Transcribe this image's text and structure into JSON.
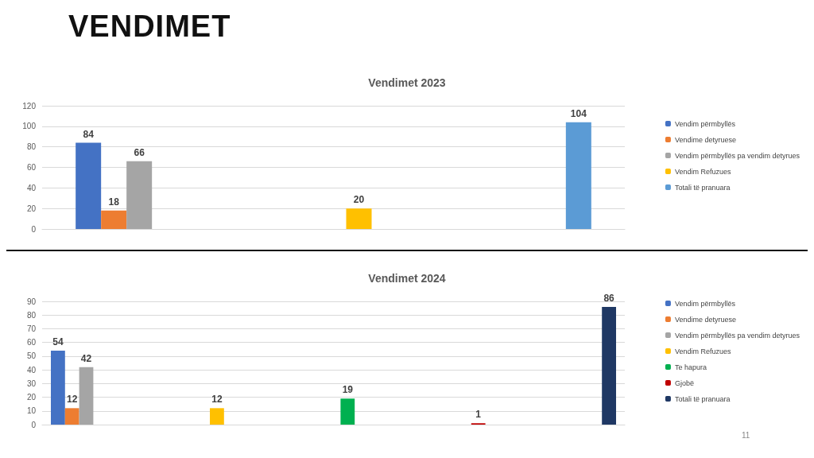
{
  "chart_data": [
    {
      "type": "bar",
      "title": "Vendimet 2023",
      "annotations": [
        "VENDIMET"
      ],
      "categories": [
        null,
        null,
        null
      ],
      "ylim": [
        0,
        120
      ],
      "yticks": [
        0,
        20,
        40,
        60,
        80,
        100,
        120
      ],
      "grid": "y",
      "legend": "right",
      "data_labels": true,
      "series": [
        {
          "name": "Vendim përmbyllës",
          "color": "#4472c4",
          "values": [
            84,
            null,
            null
          ]
        },
        {
          "name": "Vendime detyruese",
          "color": "#ed7d31",
          "values": [
            18,
            null,
            null
          ]
        },
        {
          "name": "Vendim përmbyllës pa vendim detyrues",
          "color": "#a5a5a5",
          "values": [
            66,
            null,
            null
          ]
        },
        {
          "name": "Vendim Refuzues",
          "color": "#ffc000",
          "values": [
            null,
            20,
            null
          ]
        },
        {
          "name": "Totali të pranuara",
          "color": "#5b9bd5",
          "values": [
            null,
            null,
            104
          ]
        }
      ]
    },
    {
      "type": "bar",
      "title": "Vendimet 2024",
      "annotations": [
        "11"
      ],
      "categories": [
        null,
        null,
        null,
        null,
        null
      ],
      "ylim": [
        0,
        90
      ],
      "yticks": [
        0,
        10,
        20,
        30,
        40,
        50,
        60,
        70,
        80,
        90
      ],
      "grid": "y",
      "legend": "right",
      "data_labels": true,
      "series": [
        {
          "name": "Vendim përmbyllës",
          "color": "#4472c4",
          "values": [
            54,
            null,
            null,
            null,
            null
          ]
        },
        {
          "name": "Vendime detyruese",
          "color": "#ed7d31",
          "values": [
            12,
            null,
            null,
            null,
            null
          ]
        },
        {
          "name": "Vendim përmbyllës pa vendim detyrues",
          "color": "#a5a5a5",
          "values": [
            42,
            null,
            null,
            null,
            null
          ]
        },
        {
          "name": "Vendim Refuzues",
          "color": "#ffc000",
          "values": [
            null,
            12,
            null,
            null,
            null
          ]
        },
        {
          "name": "Te hapura",
          "color": "#00b050",
          "values": [
            null,
            null,
            19,
            null,
            null
          ]
        },
        {
          "name": "Gjobë",
          "color": "#c00000",
          "values": [
            null,
            null,
            null,
            1,
            null
          ]
        },
        {
          "name": "Totali të pranuara",
          "color": "#1f3864",
          "values": [
            null,
            null,
            null,
            null,
            86
          ]
        }
      ]
    }
  ]
}
